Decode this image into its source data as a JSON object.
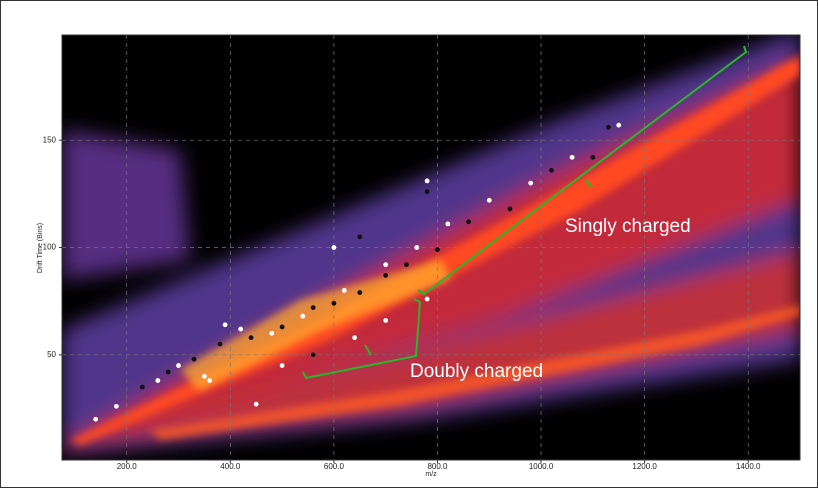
{
  "chart_data": {
    "type": "scatter",
    "xlabel": "m/z",
    "ylabel": "Drift Time (Bins)",
    "xlim": [
      75,
      1500
    ],
    "ylim": [
      1,
      199
    ],
    "xticks": [
      {
        "value": 200,
        "label": "200.0"
      },
      {
        "value": 400,
        "label": "400.0"
      },
      {
        "value": 600,
        "label": "600.0"
      },
      {
        "value": 800,
        "label": "800.0"
      },
      {
        "value": 1000,
        "label": "1000.0"
      },
      {
        "value": 1200,
        "label": "1200.0"
      },
      {
        "value": 1400,
        "label": "1400.0"
      }
    ],
    "yticks": [
      50,
      100,
      150
    ],
    "grid": true,
    "annotations": [
      "Singly charged",
      "Doubly charged"
    ],
    "series": [
      {
        "color": "#ffffff",
        "x": [
          140,
          180,
          260,
          300,
          350,
          390,
          420,
          480,
          540,
          620,
          700,
          760,
          820,
          900,
          980,
          1060,
          1150,
          500,
          560,
          640,
          700,
          780,
          780,
          600,
          360,
          450
        ],
        "y": [
          20,
          26,
          38,
          45,
          40,
          64,
          62,
          60,
          68,
          80,
          92,
          100,
          111,
          122,
          130,
          142,
          157,
          45,
          50,
          58,
          66,
          76,
          131,
          100,
          38,
          27
        ]
      },
      {
        "color": "#111111",
        "x": [
          230,
          280,
          330,
          380,
          440,
          500,
          560,
          600,
          650,
          700,
          740,
          800,
          860,
          940,
          1020,
          1100,
          1130,
          650,
          780,
          560
        ],
        "y": [
          35,
          42,
          48,
          55,
          58,
          63,
          72,
          74,
          79,
          87,
          92,
          99,
          112,
          118,
          136,
          142,
          156,
          105,
          126,
          50
        ]
      }
    ]
  }
}
